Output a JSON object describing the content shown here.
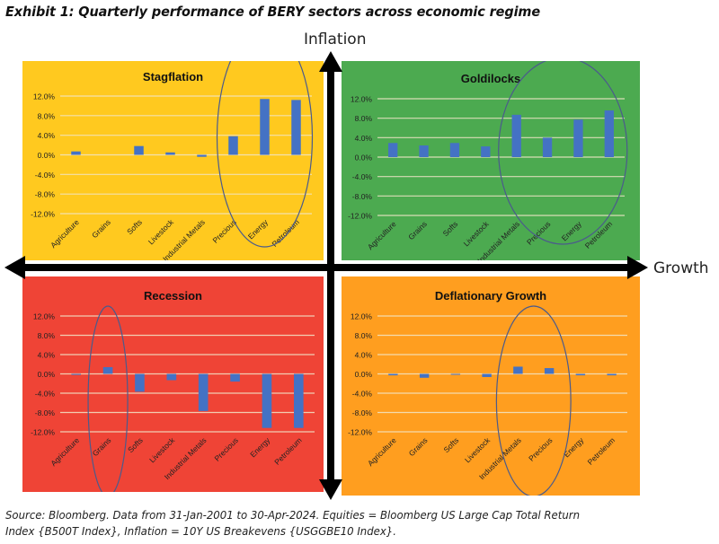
{
  "title": "Exhibit 1: Quarterly performance of BERY sectors across economic regime",
  "axes": {
    "vertical_label": "Inflation",
    "horizontal_label": "Growth"
  },
  "source_line1": "Source: Bloomberg. Data from 31-Jan-2001 to 30-Apr-2024. Equities = Bloomberg US Large Cap Total Return",
  "source_line2": "Index {B500T Index}, Inflation = 10Y US Breakevens {USGGBE10 Index}.",
  "colors": {
    "stagflation": "#FFC91F",
    "goldilocks": "#4CAA50",
    "recession": "#EF4436",
    "deflationary_growth": "#FF9E1F",
    "bar": "#4472C4",
    "highlight_ellipse": "#4B5B8C",
    "gridline": "#F2E6C8"
  },
  "chart_data": [
    {
      "type": "bar",
      "id": "stagflation",
      "title": "Stagflation",
      "quadrant": "top-left",
      "categories": [
        "Agriculture",
        "Grains",
        "Softs",
        "Livestock",
        "Industrial Metals",
        "Precious",
        "Energy",
        "Petroleum"
      ],
      "values": [
        0.7,
        0.0,
        1.8,
        0.5,
        -0.4,
        3.8,
        11.4,
        11.2
      ],
      "unit": "%",
      "yticks": [
        "12.0%",
        "8.0%",
        "4.0%",
        "0.0%",
        "-4.0%",
        "-8.0%",
        "-12.0%"
      ],
      "ylim": [
        -12,
        12
      ],
      "grid": true,
      "highlighted": [
        "Precious",
        "Energy",
        "Petroleum"
      ]
    },
    {
      "type": "bar",
      "id": "goldilocks",
      "title": "Goldilocks",
      "quadrant": "top-right",
      "categories": [
        "Agriculture",
        "Grains",
        "Softs",
        "Livestock",
        "Industrial Metals",
        "Precious",
        "Energy",
        "Petroleum"
      ],
      "values": [
        2.9,
        2.4,
        2.9,
        2.2,
        8.7,
        4.0,
        7.7,
        9.6
      ],
      "unit": "%",
      "yticks": [
        "12.0%",
        "8.0%",
        "4.0%",
        "0.0%",
        "-4.0%",
        "-8.0%",
        "-12.0%"
      ],
      "ylim": [
        -12,
        12
      ],
      "grid": true,
      "highlighted": [
        "Industrial Metals",
        "Precious",
        "Energy",
        "Petroleum"
      ]
    },
    {
      "type": "bar",
      "id": "recession",
      "title": "Recession",
      "quadrant": "bottom-left",
      "categories": [
        "Agriculture",
        "Grains",
        "Softs",
        "Livestock",
        "Industrial Metals",
        "Precious",
        "Energy",
        "Petroleum"
      ],
      "values": [
        -0.2,
        1.4,
        -3.7,
        -1.3,
        -7.7,
        -1.6,
        -11.2,
        -11.2
      ],
      "unit": "%",
      "yticks": [
        "12.0%",
        "8.0%",
        "4.0%",
        "0.0%",
        "-4.0%",
        "-8.0%",
        "-12.0%"
      ],
      "ylim": [
        -12,
        12
      ],
      "grid": true,
      "highlighted": [
        "Grains"
      ]
    },
    {
      "type": "bar",
      "id": "deflationary_growth",
      "title": "Deflationary Growth",
      "quadrant": "bottom-right",
      "categories": [
        "Agriculture",
        "Grains",
        "Softs",
        "Livestock",
        "Industrial Metals",
        "Precious",
        "Energy",
        "Petroleum"
      ],
      "values": [
        -0.3,
        -0.8,
        -0.15,
        -0.65,
        1.5,
        1.2,
        -0.3,
        -0.3
      ],
      "unit": "%",
      "yticks": [
        "12.0%",
        "8.0%",
        "4.0%",
        "0.0%",
        "-4.0%",
        "-8.0%",
        "-12.0%"
      ],
      "ylim": [
        -12,
        12
      ],
      "grid": true,
      "highlighted": [
        "Industrial Metals",
        "Precious"
      ]
    }
  ]
}
